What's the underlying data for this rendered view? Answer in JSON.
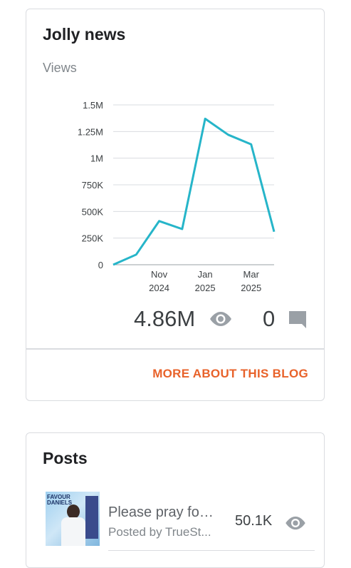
{
  "blog": {
    "title": "Jolly news",
    "views_label": "Views",
    "total_views": "4.86M",
    "total_comments": "0",
    "more_link": "MORE ABOUT THIS BLOG"
  },
  "chart_data": {
    "type": "line",
    "ylabel": "Views",
    "y_ticks": [
      "0",
      "250K",
      "500K",
      "750K",
      "1M",
      "1.25M",
      "1.5M"
    ],
    "y_tick_values": [
      0,
      250000,
      500000,
      750000,
      1000000,
      1250000,
      1500000
    ],
    "ylim": [
      0,
      1500000
    ],
    "x_ticks": [
      {
        "line1": "Nov",
        "line2": "2024",
        "x": 2
      },
      {
        "line1": "Jan",
        "line2": "2025",
        "x": 4
      },
      {
        "line1": "Mar",
        "line2": "2025",
        "x": 6
      }
    ],
    "x": [
      0,
      1,
      2,
      3,
      4,
      5,
      6,
      7
    ],
    "values": [
      0,
      95000,
      410000,
      335000,
      1370000,
      1220000,
      1130000,
      310000
    ],
    "color": "#26b5c9",
    "grid": true
  },
  "posts_card": {
    "title": "Posts",
    "items": [
      {
        "title": "Please pray for ...",
        "author": "Posted by TrueSt...",
        "views": "50.1K",
        "thumb_text": "FAVOUR DANIELS"
      }
    ]
  },
  "icons": {
    "views": "eye-icon",
    "comments": "comment-icon"
  }
}
